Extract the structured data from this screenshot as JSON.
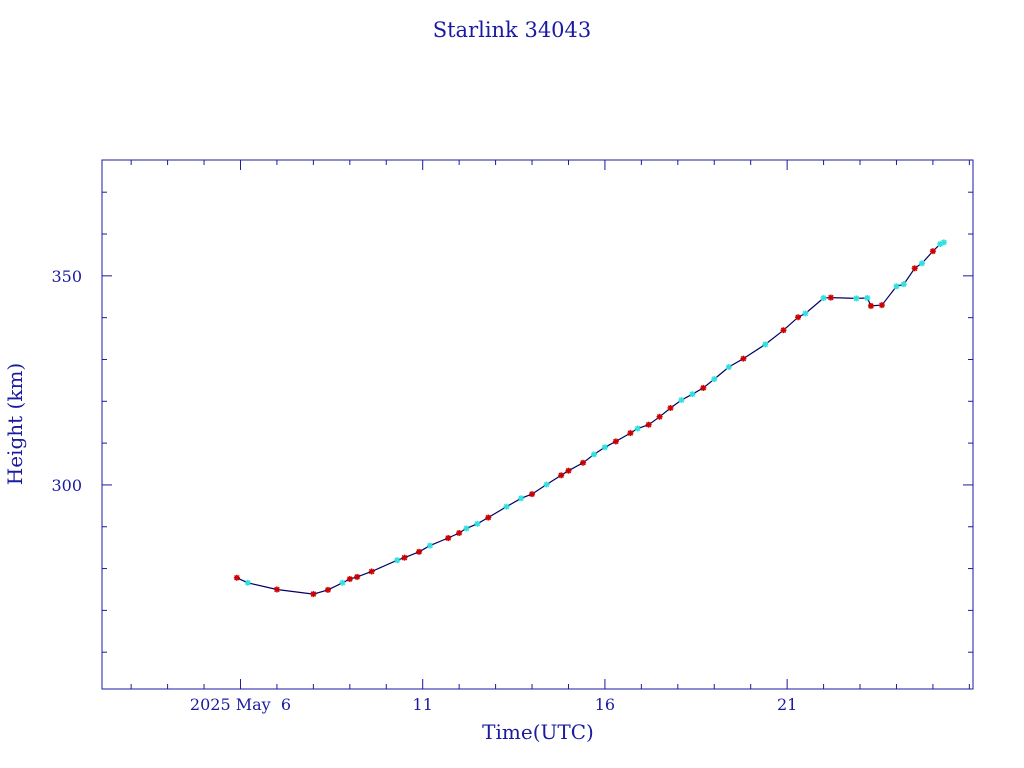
{
  "chart_data": {
    "type": "line",
    "title": "Starlink 34043",
    "xlabel": "Time(UTC)",
    "ylabel": "Height (km)",
    "x_tick_labels": [
      "2025 May  6",
      "11",
      "16",
      "21"
    ],
    "x_ticks": [
      6,
      11,
      16,
      21
    ],
    "y_tick_labels": [
      "300",
      "350"
    ],
    "y_ticks": [
      300,
      350
    ],
    "xlim": [
      2.2,
      26.1
    ],
    "ylim": [
      251.2,
      377.7
    ],
    "grid": false,
    "colors": {
      "axes": "#1a1aa0",
      "line": "#000066",
      "marker_a": "#cc0000",
      "marker_b": "#33e0e0"
    },
    "series": [
      {
        "values": [
          [
            5.9,
            277.8,
            "a"
          ],
          [
            6.2,
            276.6,
            "b"
          ],
          [
            7.0,
            275.0,
            "a"
          ],
          [
            8.0,
            273.9,
            "a"
          ],
          [
            8.4,
            274.9,
            "a"
          ],
          [
            8.8,
            276.6,
            "b"
          ],
          [
            9.0,
            277.5,
            "a"
          ],
          [
            9.2,
            278.0,
            "a"
          ],
          [
            9.6,
            279.3,
            "a"
          ],
          [
            10.3,
            282.0,
            "b"
          ],
          [
            10.5,
            282.6,
            "a"
          ],
          [
            10.9,
            284.0,
            "a"
          ],
          [
            11.2,
            285.5,
            "b"
          ],
          [
            11.7,
            287.3,
            "a"
          ],
          [
            12.0,
            288.5,
            "a"
          ],
          [
            12.2,
            289.6,
            "b"
          ],
          [
            12.5,
            290.7,
            "b"
          ],
          [
            12.8,
            292.2,
            "a"
          ],
          [
            13.3,
            294.8,
            "b"
          ],
          [
            13.7,
            296.8,
            "b"
          ],
          [
            14.0,
            297.8,
            "a"
          ],
          [
            14.4,
            300.1,
            "b"
          ],
          [
            14.8,
            302.3,
            "a"
          ],
          [
            15.0,
            303.4,
            "a"
          ],
          [
            15.4,
            305.3,
            "a"
          ],
          [
            15.7,
            307.3,
            "b"
          ],
          [
            16.0,
            309.0,
            "b"
          ],
          [
            16.3,
            310.4,
            "a"
          ],
          [
            16.7,
            312.4,
            "a"
          ],
          [
            16.9,
            313.5,
            "b"
          ],
          [
            17.2,
            314.4,
            "a"
          ],
          [
            17.5,
            316.3,
            "a"
          ],
          [
            17.8,
            318.4,
            "a"
          ],
          [
            18.1,
            320.3,
            "b"
          ],
          [
            18.4,
            321.7,
            "b"
          ],
          [
            18.7,
            323.2,
            "a"
          ],
          [
            19.0,
            325.3,
            "b"
          ],
          [
            19.4,
            328.2,
            "b"
          ],
          [
            19.8,
            330.2,
            "a"
          ],
          [
            20.4,
            333.6,
            "b"
          ],
          [
            20.9,
            337.0,
            "a"
          ],
          [
            21.3,
            340.1,
            "a"
          ],
          [
            21.5,
            341.0,
            "b"
          ],
          [
            22.0,
            344.7,
            "b"
          ],
          [
            22.2,
            344.8,
            "a"
          ],
          [
            22.9,
            344.6,
            "b"
          ],
          [
            23.2,
            344.7,
            "b"
          ],
          [
            23.3,
            342.8,
            "a"
          ],
          [
            23.6,
            343.0,
            "a"
          ],
          [
            24.0,
            347.5,
            "b"
          ],
          [
            24.2,
            348.0,
            "b"
          ],
          [
            24.5,
            351.8,
            "a"
          ],
          [
            24.7,
            353.0,
            "b"
          ],
          [
            25.0,
            355.9,
            "a"
          ],
          [
            25.2,
            357.6,
            "b"
          ],
          [
            25.3,
            358.0,
            "b"
          ]
        ]
      }
    ]
  }
}
